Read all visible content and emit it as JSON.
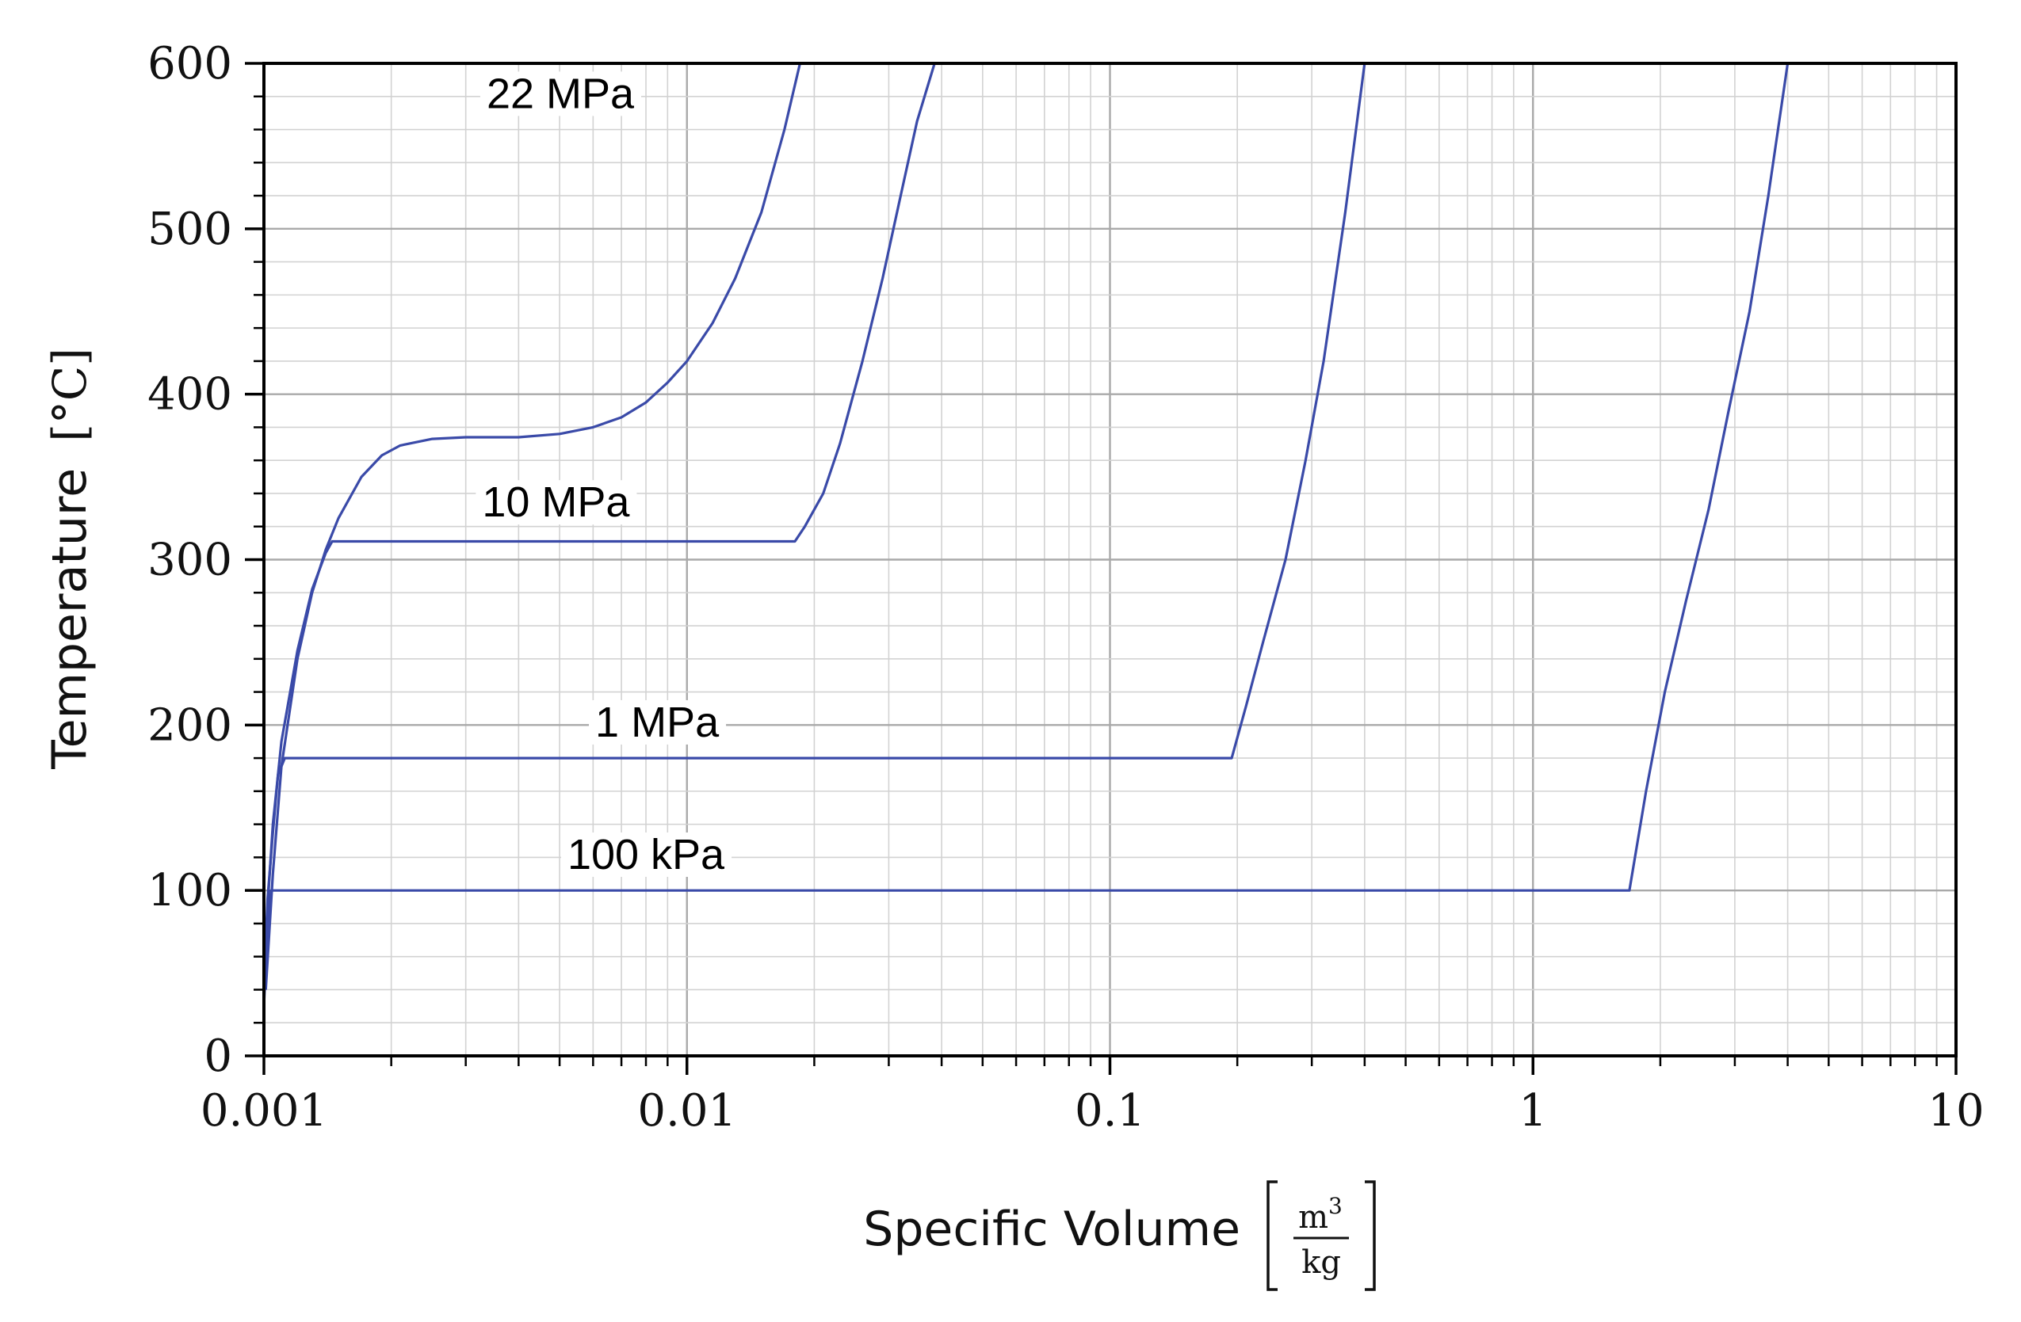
{
  "chart_data": {
    "type": "line",
    "xlabel": "Specific Volume",
    "xunit": {
      "numerator": "m",
      "exponent": "3",
      "denominator": "kg"
    },
    "ylabel": "Temperature",
    "yunit": "[°C]",
    "xscale": "log",
    "xlim": [
      0.001,
      10
    ],
    "ylim": [
      0,
      600
    ],
    "xticks": [
      0.001,
      0.01,
      0.1,
      1,
      10
    ],
    "xtick_labels": [
      "0.001",
      "0.01",
      "0.1",
      "1",
      "10"
    ],
    "yticks": [
      0,
      100,
      200,
      300,
      400,
      500,
      600
    ],
    "ytick_labels": [
      "0",
      "100",
      "200",
      "300",
      "400",
      "500",
      "600"
    ],
    "grid": true,
    "legend": "none",
    "color": "#3a4aa8",
    "series": [
      {
        "name": "22 MPa",
        "x": [
          0.00101,
          0.00105,
          0.0011,
          0.0012,
          0.0013,
          0.0014,
          0.0015,
          0.0017,
          0.0019,
          0.0021,
          0.0025,
          0.003,
          0.004,
          0.005,
          0.006,
          0.007,
          0.008,
          0.009,
          0.01,
          0.0115,
          0.013,
          0.015,
          0.017,
          0.0185
        ],
        "y": [
          40,
          110,
          175,
          240,
          280,
          306,
          325,
          350,
          363,
          369,
          373,
          374,
          374,
          376,
          380,
          386,
          395,
          407,
          420,
          443,
          470,
          510,
          560,
          600
        ]
      },
      {
        "name": "10 MPa",
        "x": [
          0.001,
          0.00102,
          0.00105,
          0.0011,
          0.0012,
          0.0013,
          0.0014,
          0.00145,
          0.018,
          0.019,
          0.021,
          0.023,
          0.026,
          0.029,
          0.032,
          0.035,
          0.0385
        ],
        "y": [
          40,
          90,
          140,
          190,
          245,
          282,
          304,
          311,
          311,
          320,
          340,
          370,
          420,
          470,
          520,
          565,
          600
        ]
      },
      {
        "name": "1 MPa",
        "x": [
          0.001,
          0.00102,
          0.00105,
          0.00108,
          0.00112,
          0.194,
          0.21,
          0.23,
          0.26,
          0.29,
          0.32,
          0.36,
          0.4
        ],
        "y": [
          40,
          95,
          135,
          170,
          180,
          180,
          212,
          250,
          300,
          360,
          420,
          510,
          600
        ]
      },
      {
        "name": "100 kPa",
        "x": [
          0.001,
          0.00102,
          0.00104,
          1.69,
          1.85,
          2.05,
          2.3,
          2.6,
          2.9,
          3.25,
          3.6,
          4.0
        ],
        "y": [
          30,
          80,
          100,
          100,
          160,
          220,
          275,
          330,
          390,
          450,
          520,
          600
        ]
      }
    ],
    "annotations": [
      {
        "text": "22 MPa",
        "x": 0.0075,
        "y": 573,
        "anchor": "end"
      },
      {
        "text": "10 MPa",
        "x": 0.0049,
        "y": 326,
        "anchor": "middle"
      },
      {
        "text": "1 MPa",
        "x": 0.0085,
        "y": 193,
        "anchor": "middle"
      },
      {
        "text": "100 kPa",
        "x": 0.008,
        "y": 113,
        "anchor": "middle"
      }
    ]
  }
}
